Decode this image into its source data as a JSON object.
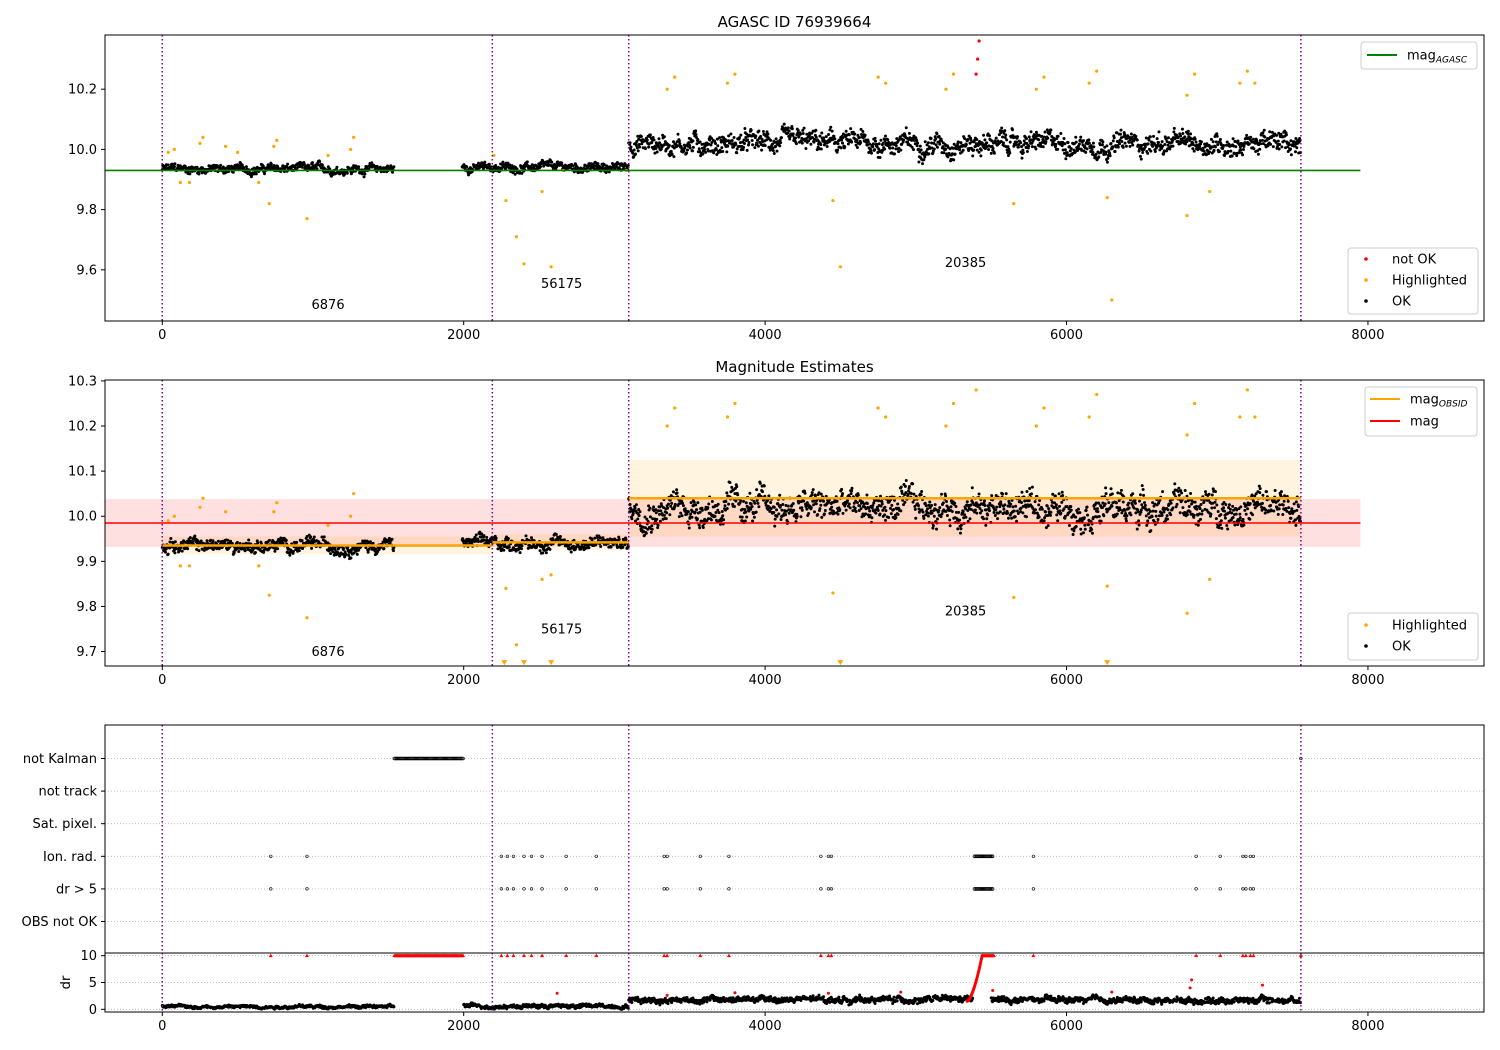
{
  "chart_data": [
    {
      "type": "scatter",
      "title": "AGASC ID 76939664",
      "xlabel": "",
      "ylabel": "",
      "xlim": [
        -380,
        8770
      ],
      "ylim": [
        9.43,
        10.38
      ],
      "xticks": [
        0,
        2000,
        4000,
        6000,
        8000
      ],
      "yticks": [
        9.6,
        9.8,
        10.0,
        10.2
      ],
      "ytick_labels": [
        "9.6",
        "9.8",
        "10.0",
        "10.2"
      ],
      "grid": false,
      "vlines": [
        0,
        2190,
        3095,
        7555
      ],
      "hline": {
        "name": "mag_AGASC",
        "y": 9.93,
        "x_range": [
          -380,
          7950
        ],
        "color": "#008000"
      },
      "obsid_labels": [
        {
          "text": "6876",
          "x": 1100,
          "y": 9.47
        },
        {
          "text": "56175",
          "x": 2650,
          "y": 9.54
        },
        {
          "text": "20385",
          "x": 5330,
          "y": 9.61
        }
      ],
      "legend_upper": {
        "position": "upper right",
        "entries": [
          {
            "label": "mag",
            "sub": "AGASC",
            "color": "#008000"
          }
        ]
      },
      "legend_lower": {
        "position": "lower right",
        "entries": [
          {
            "label": "not OK",
            "color": "#ff0000"
          },
          {
            "label": "Highlighted",
            "color": "#ffa500"
          },
          {
            "label": "OK",
            "color": "#000000"
          }
        ]
      },
      "series": [
        {
          "name": "OK",
          "color": "#000000",
          "segments": [
            {
              "x0": 0,
              "x1": 1540,
              "level": 9.935,
              "spread": 0.015
            },
            {
              "x0": 1990,
              "x1": 3095,
              "level": 9.94,
              "spread": 0.015
            },
            {
              "x0": 3095,
              "x1": 7555,
              "level": 10.02,
              "spread": 0.035
            }
          ]
        },
        {
          "name": "Highlighted",
          "color": "#ffa500",
          "points": [
            [
              40,
              9.99
            ],
            [
              80,
              10.0
            ],
            [
              120,
              9.89
            ],
            [
              180,
              9.89
            ],
            [
              250,
              10.02
            ],
            [
              270,
              10.04
            ],
            [
              420,
              10.01
            ],
            [
              500,
              9.99
            ],
            [
              640,
              9.89
            ],
            [
              710,
              9.82
            ],
            [
              740,
              10.01
            ],
            [
              760,
              10.03
            ],
            [
              960,
              9.77
            ],
            [
              1100,
              9.98
            ],
            [
              1250,
              10.0
            ],
            [
              1270,
              10.04
            ],
            [
              2200,
              9.98
            ],
            [
              2280,
              9.83
            ],
            [
              2350,
              9.71
            ],
            [
              2400,
              9.62
            ],
            [
              2520,
              9.86
            ],
            [
              2580,
              9.61
            ],
            [
              2660,
              9.93
            ],
            [
              3080,
              9.93
            ],
            [
              3350,
              10.2
            ],
            [
              3400,
              10.24
            ],
            [
              3750,
              10.22
            ],
            [
              3800,
              10.25
            ],
            [
              4450,
              9.83
            ],
            [
              4500,
              9.61
            ],
            [
              4750,
              10.24
            ],
            [
              4800,
              10.22
            ],
            [
              5200,
              10.2
            ],
            [
              5250,
              10.25
            ],
            [
              5650,
              9.82
            ],
            [
              5800,
              10.2
            ],
            [
              5850,
              10.24
            ],
            [
              6150,
              10.22
            ],
            [
              6200,
              10.26
            ],
            [
              6270,
              9.84
            ],
            [
              6300,
              9.5
            ],
            [
              6800,
              10.18
            ],
            [
              6850,
              10.25
            ],
            [
              6800,
              9.78
            ],
            [
              6950,
              9.86
            ],
            [
              7150,
              10.22
            ],
            [
              7200,
              10.26
            ],
            [
              7250,
              10.22
            ]
          ]
        },
        {
          "name": "not OK",
          "color": "#ff0000",
          "points": [
            [
              5400,
              10.25
            ],
            [
              5410,
              10.3
            ],
            [
              5420,
              10.36
            ]
          ]
        }
      ]
    },
    {
      "type": "scatter",
      "title": "Magnitude Estimates",
      "xlabel": "",
      "ylabel": "",
      "xlim": [
        -380,
        8770
      ],
      "ylim": [
        9.668,
        10.302
      ],
      "xticks": [
        0,
        2000,
        4000,
        6000,
        8000
      ],
      "yticks": [
        9.7,
        9.8,
        9.9,
        10.0,
        10.1,
        10.2,
        10.3
      ],
      "ytick_labels": [
        "9.7",
        "9.8",
        "9.9",
        "10.0",
        "10.1",
        "10.2",
        "10.3"
      ],
      "grid": false,
      "vlines": [
        0,
        2190,
        3095,
        7555
      ],
      "mag": {
        "name": "mag",
        "y": 9.985,
        "band": [
          9.932,
          10.038
        ],
        "x_range": [
          -380,
          7950
        ],
        "color": "#ff0000"
      },
      "mag_obsid": [
        {
          "x0": 0,
          "x1": 2190,
          "y": 9.935,
          "band": [
            9.915,
            9.955
          ]
        },
        {
          "x0": 2190,
          "x1": 3095,
          "y": 9.942,
          "band": [
            9.925,
            9.96
          ]
        },
        {
          "x0": 3095,
          "x1": 7555,
          "y": 10.04,
          "band": [
            9.955,
            10.125
          ]
        }
      ],
      "obsid_labels": [
        {
          "text": "6876",
          "x": 1100,
          "y": 9.69
        },
        {
          "text": "56175",
          "x": 2650,
          "y": 9.74
        },
        {
          "text": "20385",
          "x": 5330,
          "y": 9.78
        }
      ],
      "legend_upper": {
        "position": "upper right",
        "entries": [
          {
            "label": "mag",
            "sub": "OBSID",
            "color": "#ffa500"
          },
          {
            "label": "mag",
            "sub": "",
            "color": "#ff0000"
          }
        ]
      },
      "legend_lower": {
        "position": "lower right",
        "entries": [
          {
            "label": "Highlighted",
            "color": "#ffa500"
          },
          {
            "label": "OK",
            "color": "#000000"
          }
        ]
      },
      "series": [
        {
          "name": "OK",
          "color": "#000000",
          "segments": [
            {
              "x0": 0,
              "x1": 1540,
              "level": 9.935,
              "spread": 0.015
            },
            {
              "x0": 1990,
              "x1": 3095,
              "level": 9.94,
              "spread": 0.015
            },
            {
              "x0": 3095,
              "x1": 7555,
              "level": 10.02,
              "spread": 0.035
            }
          ]
        },
        {
          "name": "Highlighted",
          "color": "#ffa500",
          "points": [
            [
              40,
              9.99
            ],
            [
              80,
              10.0
            ],
            [
              120,
              9.89
            ],
            [
              180,
              9.89
            ],
            [
              250,
              10.02
            ],
            [
              270,
              10.04
            ],
            [
              420,
              10.01
            ],
            [
              640,
              9.89
            ],
            [
              710,
              9.825
            ],
            [
              740,
              10.01
            ],
            [
              760,
              10.03
            ],
            [
              960,
              9.775
            ],
            [
              1100,
              9.98
            ],
            [
              1250,
              10.0
            ],
            [
              1270,
              10.05
            ],
            [
              2280,
              9.84
            ],
            [
              2350,
              9.715
            ],
            [
              2520,
              9.86
            ],
            [
              2580,
              9.87
            ],
            [
              3350,
              10.2
            ],
            [
              3400,
              10.24
            ],
            [
              3750,
              10.22
            ],
            [
              3800,
              10.25
            ],
            [
              4450,
              9.83
            ],
            [
              4750,
              10.24
            ],
            [
              4800,
              10.22
            ],
            [
              5200,
              10.2
            ],
            [
              5250,
              10.25
            ],
            [
              5400,
              10.28
            ],
            [
              5650,
              9.82
            ],
            [
              5800,
              10.2
            ],
            [
              5850,
              10.24
            ],
            [
              6150,
              10.22
            ],
            [
              6200,
              10.27
            ],
            [
              6270,
              9.845
            ],
            [
              6800,
              10.18
            ],
            [
              6850,
              10.25
            ],
            [
              6800,
              9.785
            ],
            [
              6950,
              9.86
            ],
            [
              7150,
              10.22
            ],
            [
              7200,
              10.28
            ],
            [
              7250,
              10.22
            ]
          ]
        },
        {
          "name": "Highlighted (clipped)",
          "color": "#ffa500",
          "markers": "triangle-down",
          "points": [
            [
              2270,
              9.67
            ],
            [
              2400,
              9.67
            ],
            [
              2580,
              9.67
            ],
            [
              4500,
              9.67
            ],
            [
              6270,
              9.67
            ]
          ]
        }
      ]
    },
    {
      "type": "scatter",
      "title": "",
      "xlim": [
        -380,
        8770
      ],
      "xticks": [],
      "yticks": [
        0,
        1,
        2,
        3,
        4,
        5
      ],
      "ytick_labels": [
        "OBS not OK",
        "dr > 5",
        "Ion. rad.",
        "Sat. pixel.",
        "not track",
        "not Kalman"
      ],
      "grid": "horizontal dotted",
      "vlines": [
        0,
        2190,
        3095,
        7555
      ],
      "series": [
        {
          "name": "not Kalman",
          "row": 5,
          "ranges": [
            [
              1540,
              2000
            ]
          ],
          "points": [
            7555
          ]
        },
        {
          "name": "not track",
          "row": 4,
          "ranges": [],
          "points": []
        },
        {
          "name": "Sat. pixel.",
          "row": 3,
          "ranges": [],
          "points": []
        },
        {
          "name": "Ion. rad.",
          "row": 2,
          "ranges": [
            [
              5390,
              5510
            ]
          ],
          "points": [
            720,
            960,
            2250,
            2290,
            2330,
            2400,
            2450,
            2520,
            2680,
            2880,
            3330,
            3350,
            3570,
            3760,
            4370,
            4420,
            4440,
            5780,
            6860,
            7020,
            7170,
            7190,
            7220,
            7240
          ]
        },
        {
          "name": "dr > 5",
          "row": 1,
          "ranges": [
            [
              5390,
              5510
            ]
          ],
          "points": [
            720,
            960,
            2250,
            2290,
            2330,
            2400,
            2450,
            2520,
            2680,
            2880,
            3330,
            3350,
            3570,
            3760,
            4370,
            4420,
            4440,
            5780,
            6860,
            7020,
            7170,
            7190,
            7220,
            7240
          ]
        },
        {
          "name": "OBS not OK",
          "row": 0,
          "ranges": [],
          "points": []
        }
      ]
    },
    {
      "type": "scatter",
      "title": "",
      "ylabel": "dr",
      "xlim": [
        -380,
        8770
      ],
      "ylim": [
        -0.5,
        10.5
      ],
      "xticks": [
        0,
        2000,
        4000,
        6000,
        8000
      ],
      "yticks": [
        0,
        5,
        10
      ],
      "ytick_labels": [
        "0",
        "5",
        "10"
      ],
      "grid": "horizontal dotted",
      "vlines": [
        0,
        2190,
        3095,
        7555
      ],
      "series": [
        {
          "name": "dr",
          "color": "#000000",
          "segments": [
            {
              "x0": 0,
              "x1": 1540,
              "level": 0.5,
              "spread": 0.3
            },
            {
              "x0": 2000,
              "x1": 3095,
              "level": 0.6,
              "spread": 0.4
            },
            {
              "x0": 3095,
              "x1": 5380,
              "level": 1.8,
              "spread": 0.6
            },
            {
              "x0": 5500,
              "x1": 7555,
              "level": 1.7,
              "spread": 0.6
            }
          ]
        },
        {
          "name": "dr > 5",
          "color": "#ff0000",
          "ramp": [
            [
              5340,
              1.5
            ],
            [
              5440,
              10
            ]
          ],
          "capped_ranges": [
            [
              1540,
              2000
            ],
            [
              5440,
              5520
            ]
          ],
          "capped_points": [
            720,
            960,
            2250,
            2290,
            2330,
            2400,
            2450,
            2520,
            2680,
            2880,
            3330,
            3350,
            3570,
            3760,
            4370,
            4420,
            4440,
            5780,
            6860,
            7020,
            7170,
            7190,
            7220,
            7240,
            7555
          ],
          "points": [
            [
              3350,
              2.6
            ],
            [
              3800,
              3.1
            ],
            [
              4420,
              3.0
            ],
            [
              4900,
              3.2
            ],
            [
              5510,
              3.5
            ],
            [
              6300,
              3.2
            ],
            [
              6820,
              4.0
            ],
            [
              6830,
              5.5
            ],
            [
              7300,
              4.5
            ],
            [
              2620,
              3.0
            ]
          ]
        }
      ]
    }
  ]
}
